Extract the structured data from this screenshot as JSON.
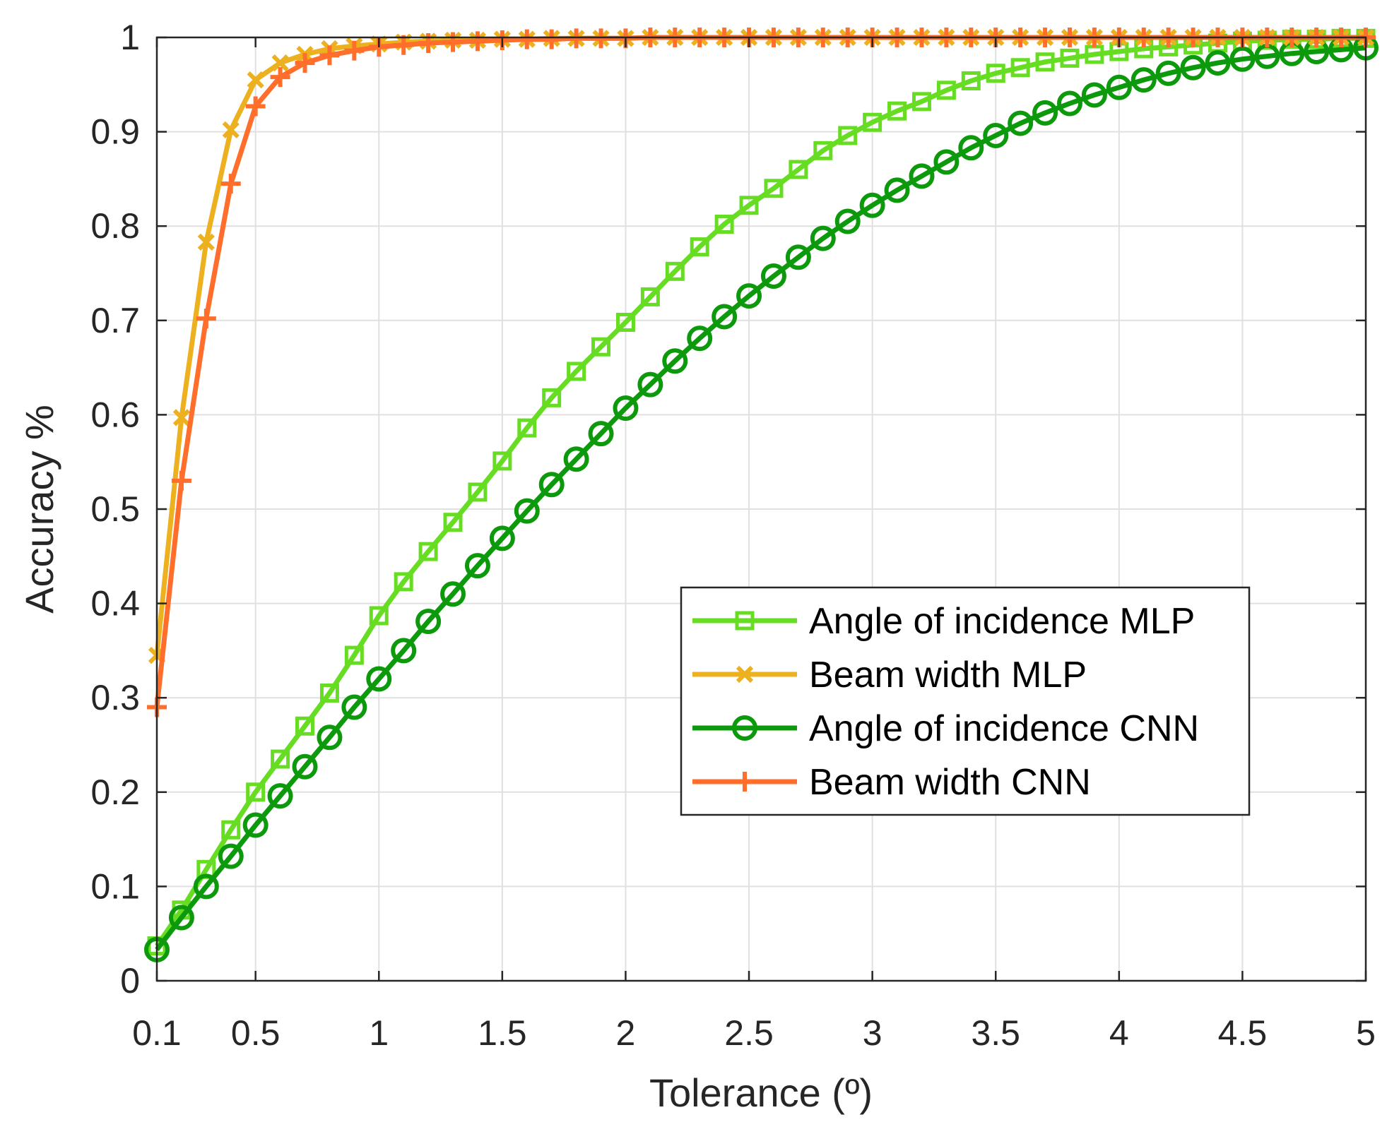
{
  "chart_data": {
    "type": "line",
    "title": "",
    "xlabel": "Tolerance (º)",
    "ylabel": "Accuracy %",
    "xlim": [
      0.1,
      5
    ],
    "ylim": [
      0,
      1
    ],
    "grid": true,
    "legend_position": "center-right",
    "xticks": [
      0.1,
      0.5,
      1,
      1.5,
      2,
      2.5,
      3,
      3.5,
      4,
      4.5,
      5
    ],
    "xtick_labels": [
      "0.1",
      "0.5",
      "1",
      "1.5",
      "2",
      "2.5",
      "3",
      "3.5",
      "4",
      "4.5",
      "5"
    ],
    "yticks": [
      0,
      0.1,
      0.2,
      0.3,
      0.4,
      0.5,
      0.6,
      0.7,
      0.8,
      0.9,
      1
    ],
    "ytick_labels": [
      "0",
      "0.1",
      "0.2",
      "0.3",
      "0.4",
      "0.5",
      "0.6",
      "0.7",
      "0.8",
      "0.9",
      "1"
    ],
    "x": [
      0.1,
      0.2,
      0.3,
      0.4,
      0.5,
      0.6,
      0.7,
      0.8,
      0.9,
      1.0,
      1.1,
      1.2,
      1.3,
      1.4,
      1.5,
      1.6,
      1.7,
      1.8,
      1.9,
      2.0,
      2.1,
      2.2,
      2.3,
      2.4,
      2.5,
      2.6,
      2.7,
      2.8,
      2.9,
      3.0,
      3.1,
      3.2,
      3.3,
      3.4,
      3.5,
      3.6,
      3.7,
      3.8,
      3.9,
      4.0,
      4.1,
      4.2,
      4.3,
      4.4,
      4.5,
      4.6,
      4.7,
      4.8,
      4.9,
      5.0
    ],
    "series": [
      {
        "name": "Angle of incidence MLP",
        "color": "#66dd22",
        "marker": "square",
        "values": [
          0.037,
          0.075,
          0.118,
          0.16,
          0.2,
          0.235,
          0.27,
          0.305,
          0.345,
          0.387,
          0.423,
          0.455,
          0.486,
          0.518,
          0.551,
          0.586,
          0.618,
          0.646,
          0.672,
          0.698,
          0.725,
          0.752,
          0.778,
          0.802,
          0.822,
          0.84,
          0.86,
          0.88,
          0.896,
          0.91,
          0.922,
          0.932,
          0.944,
          0.954,
          0.962,
          0.968,
          0.974,
          0.978,
          0.982,
          0.985,
          0.988,
          0.99,
          0.992,
          0.994,
          0.996,
          0.997,
          0.998,
          0.998,
          0.999,
          0.999
        ]
      },
      {
        "name": "Beam width MLP",
        "color": "#edb120",
        "marker": "x",
        "values": [
          0.345,
          0.597,
          0.783,
          0.902,
          0.955,
          0.973,
          0.982,
          0.988,
          0.991,
          0.993,
          0.995,
          0.996,
          0.997,
          0.997,
          0.998,
          0.998,
          0.999,
          0.999,
          0.999,
          0.999,
          1,
          1,
          1,
          1,
          1,
          1,
          1,
          1,
          1,
          1,
          1,
          1,
          1,
          1,
          1,
          1,
          1,
          1,
          1,
          1,
          1,
          1,
          1,
          1,
          1,
          1,
          1,
          1,
          1,
          1
        ]
      },
      {
        "name": "Angle of incidence CNN",
        "color": "#0c9a0c",
        "marker": "circle",
        "values": [
          0.033,
          0.067,
          0.1,
          0.132,
          0.165,
          0.196,
          0.227,
          0.258,
          0.29,
          0.32,
          0.35,
          0.381,
          0.41,
          0.44,
          0.469,
          0.498,
          0.526,
          0.553,
          0.58,
          0.607,
          0.632,
          0.657,
          0.681,
          0.704,
          0.726,
          0.747,
          0.767,
          0.787,
          0.805,
          0.822,
          0.838,
          0.853,
          0.868,
          0.883,
          0.896,
          0.909,
          0.92,
          0.93,
          0.939,
          0.947,
          0.955,
          0.962,
          0.968,
          0.973,
          0.977,
          0.98,
          0.983,
          0.985,
          0.987,
          0.989
        ]
      },
      {
        "name": "Beam width CNN",
        "color": "#ff6e2b",
        "marker": "plus",
        "values": [
          0.29,
          0.53,
          0.702,
          0.845,
          0.927,
          0.958,
          0.973,
          0.981,
          0.986,
          0.99,
          0.992,
          0.994,
          0.995,
          0.996,
          0.997,
          0.998,
          0.998,
          0.999,
          0.999,
          0.999,
          1,
          1,
          1,
          1,
          1,
          1,
          1,
          1,
          1,
          1,
          1,
          1,
          1,
          1,
          1,
          1,
          1,
          1,
          1,
          1,
          1,
          1,
          1,
          1,
          1,
          1,
          1,
          1,
          1,
          1
        ]
      }
    ]
  }
}
